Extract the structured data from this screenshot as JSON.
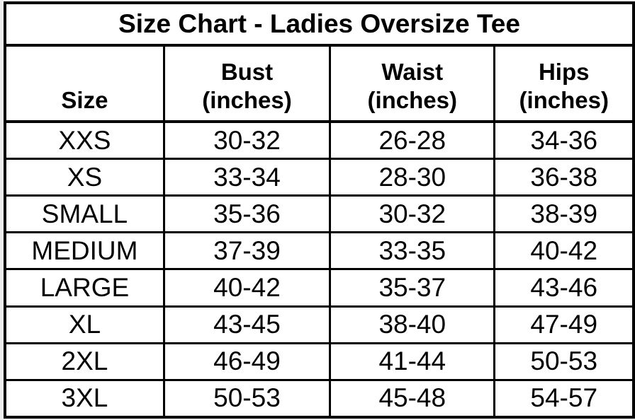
{
  "title": "Size Chart - Ladies Oversize Tee",
  "columns": {
    "size": {
      "name": "Size"
    },
    "bust": {
      "name": "Bust",
      "unit": "(inches)"
    },
    "waist": {
      "name": "Waist",
      "unit": "(inches)"
    },
    "hips": {
      "name": "Hips",
      "unit": "(inches)"
    }
  },
  "rows": [
    {
      "size": "XXS",
      "bust": "30-32",
      "waist": "26-28",
      "hips": "34-36"
    },
    {
      "size": "XS",
      "bust": "33-34",
      "waist": "28-30",
      "hips": "36-38"
    },
    {
      "size": "SMALL",
      "bust": "35-36",
      "waist": "30-32",
      "hips": "38-39"
    },
    {
      "size": "MEDIUM",
      "bust": "37-39",
      "waist": "33-35",
      "hips": "40-42"
    },
    {
      "size": "LARGE",
      "bust": "40-42",
      "waist": "35-37",
      "hips": "43-46"
    },
    {
      "size": "XL",
      "bust": "43-45",
      "waist": "38-40",
      "hips": "47-49"
    },
    {
      "size": "2XL",
      "bust": "46-49",
      "waist": "41-44",
      "hips": "50-53"
    },
    {
      "size": "3XL",
      "bust": "50-53",
      "waist": "45-48",
      "hips": "54-57"
    }
  ],
  "colors": {
    "text": "#000000",
    "border": "#000000",
    "table_background": "#ffffff",
    "page_background": "#ededed"
  }
}
